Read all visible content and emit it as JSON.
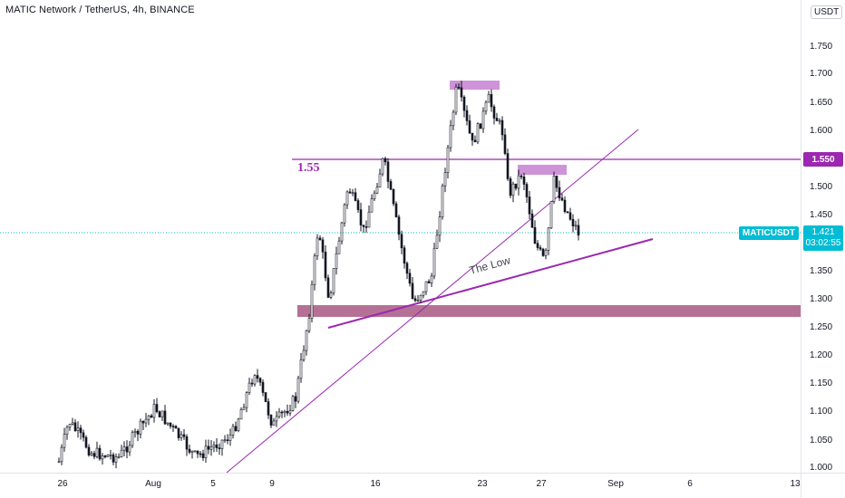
{
  "symbol_title": "MATIC Network / TetherUS, 4h, BINANCE",
  "currency_label": "USDT",
  "price_axis": {
    "ticks": [
      "1.750",
      "1.700",
      "1.650",
      "1.600",
      "1.550",
      "1.500",
      "1.450",
      "1.400",
      "1.350",
      "1.300",
      "1.250",
      "1.200",
      "1.150",
      "1.100",
      "1.050",
      "1.000"
    ]
  },
  "time_axis": {
    "ticks": [
      "26",
      "Aug",
      "5",
      "9",
      "16",
      "23",
      "27",
      "Sep",
      "6",
      "13"
    ]
  },
  "level_label": "1.550",
  "last_price": {
    "ticker": "MATICUSDT",
    "price": "1.421",
    "countdown": "03:02:55"
  },
  "annotations": {
    "level_text": "1.55",
    "trend_text": "The Low"
  },
  "colors": {
    "up": "#26a69a",
    "down": "#ef5350",
    "candle": "#131722",
    "level": "#9c27b0",
    "zone": "#a34d7a",
    "price": "#00bcd4"
  }
}
